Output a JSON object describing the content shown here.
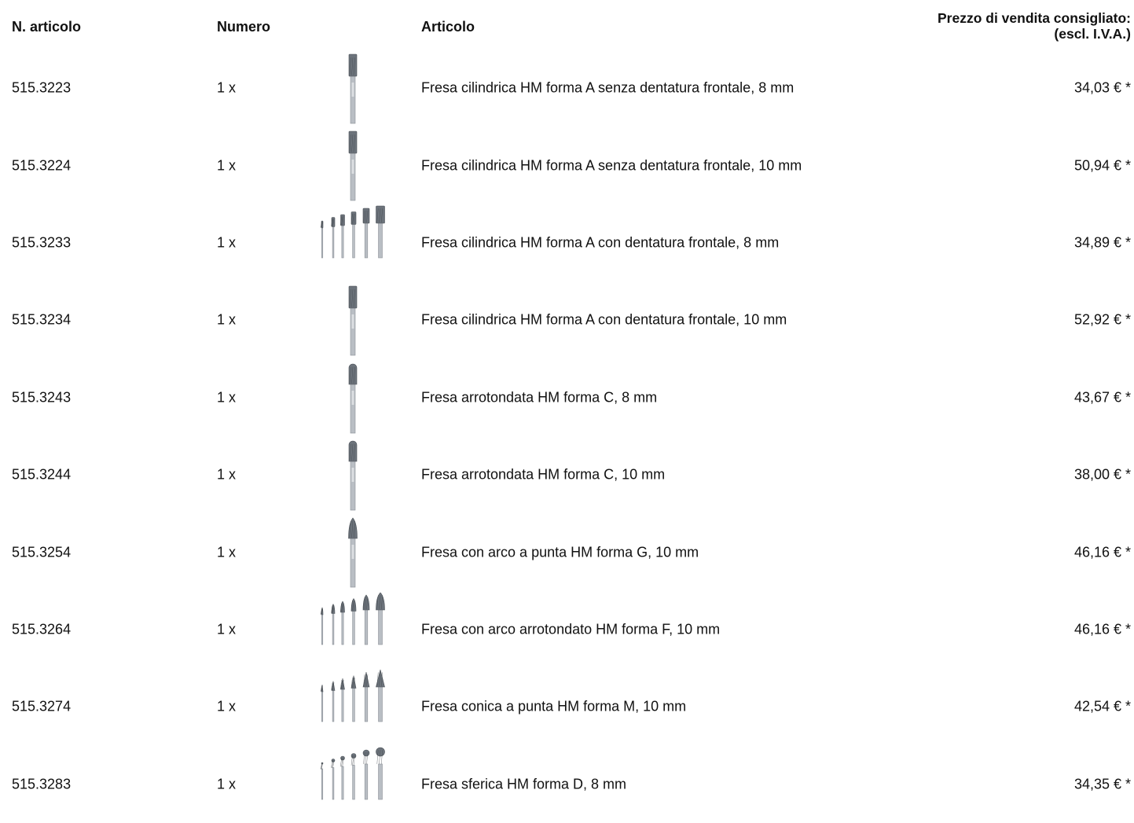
{
  "header": {
    "col_article_no": "N. articolo",
    "col_quantity": "Numero",
    "col_article": "Articolo",
    "col_price_line1": "Prezzo di vendita consigliato:",
    "col_price_line2": "(escl. I.V.A.)"
  },
  "rows": [
    {
      "article_no": "515.3223",
      "quantity": "1 x",
      "image": "single-cylinder-burr",
      "description": "Fresa cilindrica HM forma A senza dentatura frontale, 8 mm",
      "price": "34,03 € *"
    },
    {
      "article_no": "515.3224",
      "quantity": "1 x",
      "image": "single-cylinder-burr",
      "description": "Fresa cilindrica HM forma A senza dentatura frontale, 10 mm",
      "price": "50,94 € *"
    },
    {
      "article_no": "515.3233",
      "quantity": "1 x",
      "image": "cylinder-burr-set",
      "description": "Fresa cilindrica HM forma A con dentatura frontale, 8 mm",
      "price": "34,89 € *"
    },
    {
      "article_no": "515.3234",
      "quantity": "1 x",
      "image": "single-cylinder-burr",
      "description": "Fresa cilindrica HM forma A con dentatura frontale, 10 mm",
      "price": "52,92 € *"
    },
    {
      "article_no": "515.3243",
      "quantity": "1 x",
      "image": "single-rounded-burr",
      "description": "Fresa arrotondata HM forma C, 8 mm",
      "price": "43,67 € *"
    },
    {
      "article_no": "515.3244",
      "quantity": "1 x",
      "image": "single-rounded-burr",
      "description": "Fresa arrotondata HM forma C, 10 mm",
      "price": "38,00 € *"
    },
    {
      "article_no": "515.3254",
      "quantity": "1 x",
      "image": "single-pointed-arch-burr",
      "description": "Fresa con arco a punta HM forma G, 10 mm",
      "price": "46,16 € *"
    },
    {
      "article_no": "515.3264",
      "quantity": "1 x",
      "image": "arch-burr-set",
      "description": "Fresa con arco arrotondato HM forma F, 10 mm",
      "price": "46,16 € *"
    },
    {
      "article_no": "515.3274",
      "quantity": "1 x",
      "image": "cone-burr-set",
      "description": "Fresa conica a punta HM forma M, 10 mm",
      "price": "42,54 € *"
    },
    {
      "article_no": "515.3283",
      "quantity": "1 x",
      "image": "ball-burr-set",
      "description": "Fresa sferica HM forma D, 8 mm",
      "price": "34,35 € *"
    }
  ]
}
